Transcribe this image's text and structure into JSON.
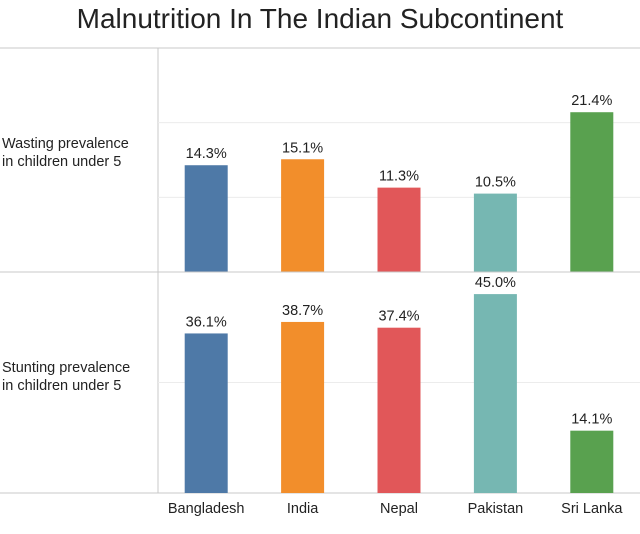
{
  "chart_data": {
    "type": "bar",
    "title": "Malnutrition In The Indian Subcontinent",
    "categories": [
      "Bangladesh",
      "India",
      "Nepal",
      "Pakistan",
      "Sri Lanka"
    ],
    "colors": [
      "#4e79a7",
      "#f28e2b",
      "#e15759",
      "#76b7b2",
      "#59a14f"
    ],
    "value_format": "percent-1dp",
    "grid": true,
    "rows": [
      {
        "label_lines": [
          "Wasting prevalence",
          "in  children under 5"
        ],
        "values": [
          14.3,
          15.1,
          11.3,
          10.5,
          21.4
        ],
        "ylim": [
          0,
          30
        ]
      },
      {
        "label_lines": [
          "Stunting prevalence",
          "in children under 5"
        ],
        "values": [
          36.1,
          38.7,
          37.4,
          45.0,
          14.1
        ],
        "ylim": [
          0,
          50
        ]
      }
    ]
  }
}
